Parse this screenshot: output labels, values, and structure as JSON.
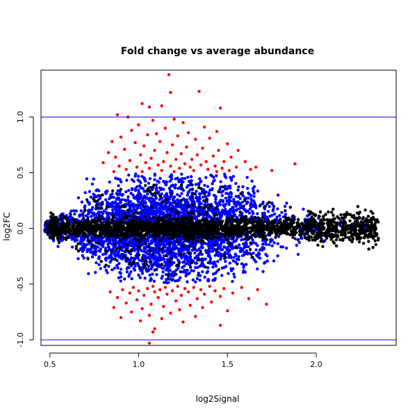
{
  "chart_data": {
    "type": "scatter",
    "title": "Fold change vs average abundance",
    "xlabel": "log2Signal",
    "ylabel": "log2FC",
    "xlim": [
      0.45,
      2.45
    ],
    "ylim": [
      -1.05,
      1.42
    ],
    "xticks": [
      {
        "value": 0.5,
        "label": "0.5"
      },
      {
        "value": 1.0,
        "label": "1.0"
      },
      {
        "value": 1.5,
        "label": "1.5"
      },
      {
        "value": 2.0,
        "label": "2.0"
      }
    ],
    "yticks": [
      {
        "value": -1.0,
        "label": "-1.0"
      },
      {
        "value": -0.5,
        "label": "-0.5"
      },
      {
        "value": 0.0,
        "label": "0.0"
      },
      {
        "value": 0.5,
        "label": "0.5"
      },
      {
        "value": 1.0,
        "label": "1.0"
      }
    ],
    "hlines": [
      1.0,
      -1.0
    ],
    "grid": false,
    "colors": {
      "not_significant": "#000000",
      "significant": "#0000ff",
      "abs_fc_gt_0.5": "#ff0000",
      "threshold_line": "#0000ff"
    },
    "series": [
      {
        "color": "#ff0000",
        "points": [
          [
            1.17,
            1.38
          ],
          [
            1.34,
            1.23
          ],
          [
            1.18,
            1.22
          ],
          [
            1.02,
            1.12
          ],
          [
            1.46,
            1.08
          ],
          [
            1.13,
            1.1
          ],
          [
            1.06,
            1.09
          ],
          [
            0.88,
            1.02
          ],
          [
            0.94,
            1.0
          ],
          [
            1.2,
            0.98
          ],
          [
            1.08,
            0.97
          ],
          [
            1.25,
            0.95
          ],
          [
            1.0,
            0.93
          ],
          [
            1.37,
            0.91
          ],
          [
            1.15,
            0.9
          ],
          [
            0.96,
            0.88
          ],
          [
            1.44,
            0.87
          ],
          [
            1.28,
            0.86
          ],
          [
            1.1,
            0.85
          ],
          [
            1.05,
            0.84
          ],
          [
            0.9,
            0.82
          ],
          [
            1.22,
            0.83
          ],
          [
            1.4,
            0.81
          ],
          [
            1.32,
            0.8
          ],
          [
            0.85,
            0.78
          ],
          [
            1.12,
            0.78
          ],
          [
            0.98,
            0.77
          ],
          [
            1.5,
            0.76
          ],
          [
            1.19,
            0.75
          ],
          [
            1.03,
            0.74
          ],
          [
            1.27,
            0.73
          ],
          [
            1.36,
            0.72
          ],
          [
            0.92,
            0.71
          ],
          [
            1.09,
            0.7
          ],
          [
            1.45,
            0.7
          ],
          [
            1.56,
            0.7
          ],
          [
            0.83,
            0.68
          ],
          [
            1.16,
            0.68
          ],
          [
            1.24,
            0.67
          ],
          [
            1.01,
            0.66
          ],
          [
            1.33,
            0.66
          ],
          [
            1.42,
            0.65
          ],
          [
            1.52,
            0.64
          ],
          [
            0.87,
            0.64
          ],
          [
            1.07,
            0.63
          ],
          [
            1.21,
            0.62
          ],
          [
            1.3,
            0.62
          ],
          [
            0.95,
            0.61
          ],
          [
            1.14,
            0.6
          ],
          [
            1.38,
            0.6
          ],
          [
            1.48,
            0.6
          ],
          [
            1.6,
            0.6
          ],
          [
            0.8,
            0.59
          ],
          [
            1.04,
            0.59
          ],
          [
            1.26,
            0.58
          ],
          [
            1.88,
            0.58
          ],
          [
            1.11,
            0.57
          ],
          [
            1.35,
            0.57
          ],
          [
            0.89,
            0.56
          ],
          [
            1.18,
            0.56
          ],
          [
            1.43,
            0.56
          ],
          [
            1.55,
            0.55
          ],
          [
            0.99,
            0.55
          ],
          [
            1.29,
            0.55
          ],
          [
            1.66,
            0.55
          ],
          [
            1.06,
            0.54
          ],
          [
            1.23,
            0.54
          ],
          [
            1.47,
            0.54
          ],
          [
            0.93,
            0.53
          ],
          [
            1.39,
            0.53
          ],
          [
            1.63,
            0.53
          ],
          [
            1.13,
            0.52
          ],
          [
            1.31,
            0.52
          ],
          [
            1.51,
            0.52
          ],
          [
            1.75,
            0.52
          ],
          [
            1.02,
            0.51
          ],
          [
            1.2,
            0.51
          ],
          [
            1.44,
            0.51
          ],
          [
            0.86,
            0.51
          ],
          [
            1.08,
            -0.52
          ],
          [
            1.22,
            -0.52
          ],
          [
            1.4,
            -0.52
          ],
          [
            0.97,
            -0.53
          ],
          [
            1.15,
            -0.53
          ],
          [
            1.31,
            -0.53
          ],
          [
            1.58,
            -0.53
          ],
          [
            1.05,
            -0.54
          ],
          [
            1.26,
            -0.54
          ],
          [
            1.48,
            -0.54
          ],
          [
            0.91,
            -0.55
          ],
          [
            1.12,
            -0.55
          ],
          [
            1.35,
            -0.55
          ],
          [
            1.67,
            -0.55
          ],
          [
            1.0,
            -0.56
          ],
          [
            1.19,
            -0.56
          ],
          [
            1.43,
            -0.56
          ],
          [
            0.84,
            -0.57
          ],
          [
            1.09,
            -0.57
          ],
          [
            1.28,
            -0.57
          ],
          [
            1.53,
            -0.58
          ],
          [
            0.95,
            -0.58
          ],
          [
            1.16,
            -0.59
          ],
          [
            1.37,
            -0.59
          ],
          [
            1.03,
            -0.6
          ],
          [
            1.24,
            -0.6
          ],
          [
            1.46,
            -0.61
          ],
          [
            0.88,
            -0.62
          ],
          [
            1.11,
            -0.62
          ],
          [
            1.33,
            -0.63
          ],
          [
            1.62,
            -0.63
          ],
          [
            0.99,
            -0.64
          ],
          [
            1.21,
            -0.65
          ],
          [
            1.41,
            -0.66
          ],
          [
            0.93,
            -0.67
          ],
          [
            1.07,
            -0.68
          ],
          [
            1.29,
            -0.69
          ],
          [
            1.72,
            -0.68
          ],
          [
            1.14,
            -0.7
          ],
          [
            0.86,
            -0.71
          ],
          [
            1.36,
            -0.71
          ],
          [
            1.02,
            -0.72
          ],
          [
            1.23,
            -0.73
          ],
          [
            1.5,
            -0.74
          ],
          [
            0.96,
            -0.75
          ],
          [
            1.18,
            -0.76
          ],
          [
            1.06,
            -0.78
          ],
          [
            1.32,
            -0.79
          ],
          [
            0.9,
            -0.8
          ],
          [
            1.13,
            -0.81
          ],
          [
            1.01,
            -0.83
          ],
          [
            1.25,
            -0.84
          ],
          [
            1.46,
            -0.87
          ],
          [
            1.09,
            -0.9
          ],
          [
            1.08,
            -0.93
          ],
          [
            1.06,
            -1.03
          ]
        ]
      }
    ]
  }
}
